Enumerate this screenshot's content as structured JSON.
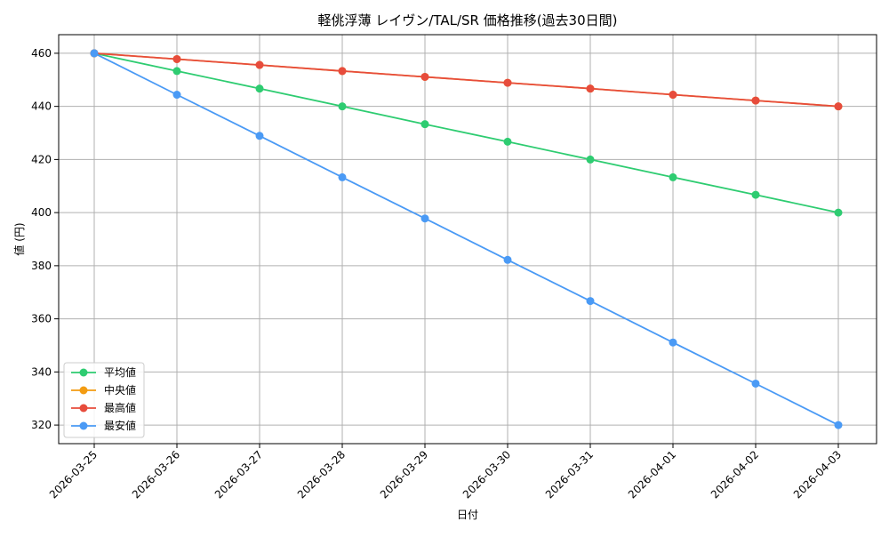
{
  "chart_data": {
    "type": "line",
    "title": "軽佻浮薄 レイヴン/TAL/SR 価格推移(過去30日間)",
    "xlabel": "日付",
    "ylabel": "値 (円)",
    "categories": [
      "2026-03-25",
      "2026-03-26",
      "2026-03-27",
      "2026-03-28",
      "2026-03-29",
      "2026-03-30",
      "2026-03-31",
      "2026-04-01",
      "2026-04-02",
      "2026-04-03"
    ],
    "ylim": [
      313,
      467
    ],
    "yticks": [
      320,
      340,
      360,
      380,
      400,
      420,
      440,
      460
    ],
    "grid": true,
    "legend_position": "lower-left",
    "series": [
      {
        "name": "平均値",
        "color": "#2ecc71",
        "values": [
          460,
          453.3,
          446.7,
          440,
          433.3,
          426.7,
          420,
          413.3,
          406.7,
          400
        ]
      },
      {
        "name": "中央値",
        "color": "#f39c12",
        "values": [
          460,
          457.8,
          455.6,
          453.3,
          451.1,
          448.9,
          446.7,
          444.4,
          442.2,
          440
        ]
      },
      {
        "name": "最高値",
        "color": "#e74c3c",
        "values": [
          460,
          457.8,
          455.6,
          453.3,
          451.1,
          448.9,
          446.7,
          444.4,
          442.2,
          440
        ]
      },
      {
        "name": "最安値",
        "color": "#4a9af5",
        "values": [
          460,
          444.4,
          428.9,
          413.3,
          397.8,
          382.2,
          366.7,
          351.1,
          335.6,
          320
        ]
      }
    ]
  }
}
